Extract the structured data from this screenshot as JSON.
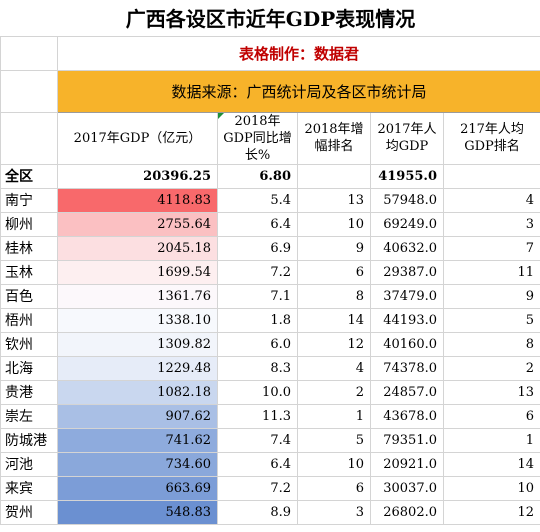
{
  "title": "广西各设区市近年GDP表现情况",
  "maker": "表格制作：数据君",
  "source": "数据来源：广西统计局及各区市统计局",
  "headers": {
    "gdp2017": "2017年GDP（亿元）",
    "growth2018": "2018年GDP同比增长%",
    "growth_rank": "2018年增幅排名",
    "per_capita": "2017年人均GDP",
    "per_capita_rank": "217年人均GDP排名"
  },
  "total": {
    "name": "全区",
    "gdp": "20396.25",
    "growth": "6.80",
    "per_capita": "41955.0"
  },
  "rows": [
    {
      "name": "南宁",
      "gdp": "4118.83",
      "growth": "5.4",
      "growth_rank": "13",
      "per_capita": "57948.0",
      "per_capita_rank": "4",
      "heat": "#f8696b"
    },
    {
      "name": "柳州",
      "gdp": "2755.64",
      "growth": "6.4",
      "growth_rank": "10",
      "per_capita": "69249.0",
      "per_capita_rank": "3",
      "heat": "#fbc0c2"
    },
    {
      "name": "桂林",
      "gdp": "2045.18",
      "growth": "6.9",
      "growth_rank": "9",
      "per_capita": "40632.0",
      "per_capita_rank": "7",
      "heat": "#fcdfe1"
    },
    {
      "name": "玉林",
      "gdp": "1699.54",
      "growth": "7.2",
      "growth_rank": "6",
      "per_capita": "29387.0",
      "per_capita_rank": "11",
      "heat": "#fdeff0"
    },
    {
      "name": "百色",
      "gdp": "1361.76",
      "growth": "7.1",
      "growth_rank": "8",
      "per_capita": "37479.0",
      "per_capita_rank": "9",
      "heat": "#fcf8fb"
    },
    {
      "name": "梧州",
      "gdp": "1338.10",
      "growth": "1.8",
      "growth_rank": "14",
      "per_capita": "44193.0",
      "per_capita_rank": "5",
      "heat": "#f7f9fd"
    },
    {
      "name": "钦州",
      "gdp": "1309.82",
      "growth": "6.0",
      "growth_rank": "12",
      "per_capita": "40160.0",
      "per_capita_rank": "8",
      "heat": "#f2f5fb"
    },
    {
      "name": "北海",
      "gdp": "1229.48",
      "growth": "8.3",
      "growth_rank": "4",
      "per_capita": "74378.0",
      "per_capita_rank": "2",
      "heat": "#e6ecf8"
    },
    {
      "name": "贵港",
      "gdp": "1082.18",
      "growth": "10.0",
      "growth_rank": "2",
      "per_capita": "24857.0",
      "per_capita_rank": "13",
      "heat": "#c9d7ef"
    },
    {
      "name": "崇左",
      "gdp": "907.62",
      "growth": "11.3",
      "growth_rank": "1",
      "per_capita": "43678.0",
      "per_capita_rank": "6",
      "heat": "#a9bfe5"
    },
    {
      "name": "防城港",
      "gdp": "741.62",
      "growth": "7.4",
      "growth_rank": "5",
      "per_capita": "79351.0",
      "per_capita_rank": "1",
      "heat": "#8eabdd"
    },
    {
      "name": "河池",
      "gdp": "734.60",
      "growth": "6.4",
      "growth_rank": "10",
      "per_capita": "20921.0",
      "per_capita_rank": "14",
      "heat": "#8aa8db"
    },
    {
      "name": "来宾",
      "gdp": "663.69",
      "growth": "7.2",
      "growth_rank": "6",
      "per_capita": "30037.0",
      "per_capita_rank": "10",
      "heat": "#7c9dd7"
    },
    {
      "name": "贺州",
      "gdp": "548.83",
      "growth": "8.9",
      "growth_rank": "3",
      "per_capita": "26802.0",
      "per_capita_rank": "12",
      "heat": "#6b90d1"
    }
  ]
}
